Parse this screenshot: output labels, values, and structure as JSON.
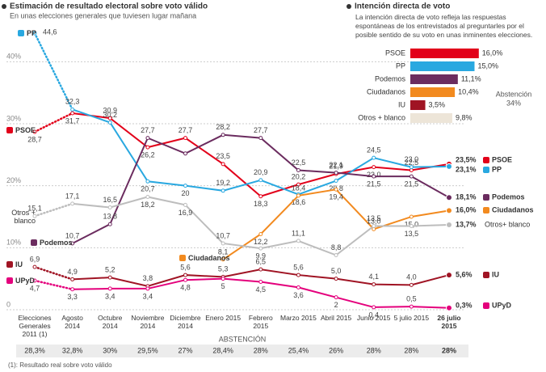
{
  "chart_data": [
    {
      "type": "line",
      "title": "Estimación de resultado electoral sobre voto válido",
      "subtitle": "En unas elecciones generales que tuviesen lugar mañana",
      "categories": [
        "Elecciones Generales 2011 (1)",
        "Agosto 2014",
        "Octubre 2014",
        "Noviembre 2014",
        "Diciembre 2014",
        "Enero 2015",
        "Febrero 2015",
        "Marzo 2015",
        "Abril 2015",
        "Junio 2015",
        "5 julio 2015",
        "26 julio 2015"
      ],
      "ylim": [
        0,
        45
      ],
      "yticks": [
        0,
        {
          "value": 10,
          "label": "10%"
        },
        {
          "value": 20,
          "label": "20%"
        },
        {
          "value": 30,
          "label": "30%"
        },
        {
          "value": 40,
          "label": "40%"
        }
      ],
      "grid": true,
      "series": [
        {
          "name": "PSOE",
          "color": "#e2001a",
          "values": [
            28.7,
            31.7,
            30.9,
            26.2,
            27.7,
            23.5,
            18.3,
            20.2,
            21.9,
            23.0,
            22.5,
            23.5
          ],
          "value_labels": [
            "28,7",
            "31,7",
            "30,9",
            "26,2",
            "27,7",
            "23,5",
            "18,3",
            "20,2",
            "21,9",
            "23,0",
            "22,5",
            "23,5%"
          ]
        },
        {
          "name": "PP",
          "color": "#29a8e0",
          "values": [
            44.6,
            32.3,
            30.2,
            20.7,
            20,
            19.2,
            20.9,
            18.6,
            20.8,
            24.5,
            23.0,
            23.1
          ],
          "value_labels": [
            "44,6",
            "32,3",
            "30,2",
            "20,7",
            "20",
            "19,2",
            "20,9",
            "18,6",
            "20,8",
            "24,5",
            "23,0",
            "23,1%"
          ]
        },
        {
          "name": "Podemos",
          "color": "#6b2c5f",
          "values": [
            null,
            10.7,
            13.8,
            27.7,
            25.2,
            28.2,
            27.7,
            22.5,
            22.1,
            21.5,
            21.5,
            18.1
          ],
          "value_labels": [
            null,
            "10,7",
            "13,8",
            "27,7",
            null,
            "28,2",
            "27,7",
            "22,5",
            "22,1",
            "21,5",
            "21,5",
            "18,1%"
          ]
        },
        {
          "name": "Ciudadanos",
          "color": "#f28a1f",
          "values": [
            null,
            null,
            null,
            null,
            null,
            8.1,
            12.2,
            18.4,
            19.4,
            13.0,
            15.0,
            16.0
          ],
          "value_labels": [
            null,
            null,
            null,
            null,
            null,
            "8,1",
            "12,2",
            "18,4",
            "19,4",
            "13,0",
            "15,0",
            "16,0%"
          ]
        },
        {
          "name": "Otros+ blanco",
          "start_name": "Otros + blanco",
          "color": "#bdbdbd",
          "values": [
            15.1,
            17.1,
            16.5,
            18.2,
            16.9,
            10.7,
            9.9,
            11.1,
            8.8,
            13.5,
            13.5,
            13.7
          ],
          "value_labels": [
            "15,1",
            "17,1",
            "16,5",
            "18,2",
            "16,9",
            "10,7",
            "9,9",
            "11,1",
            "8,8",
            "13,5",
            "13,5",
            "13,7%"
          ]
        },
        {
          "name": "IU",
          "color": "#a01424",
          "values": [
            6.9,
            4.9,
            5.2,
            3.8,
            5.6,
            5.3,
            6.5,
            5.6,
            5.0,
            4.1,
            4.0,
            5.6
          ],
          "value_labels": [
            "6,9",
            "4,9",
            "5,2",
            "3,8",
            "5,6",
            "5,3",
            "6,5",
            "5,6",
            "5,0",
            "4,1",
            "4,0",
            "5,6%"
          ]
        },
        {
          "name": "UPyD",
          "color": "#e4007c",
          "values": [
            4.7,
            3.3,
            3.4,
            3.4,
            4.8,
            5,
            4.5,
            3.6,
            2,
            0.4,
            0.5,
            0.3
          ],
          "value_labels": [
            "4,7",
            "3,3",
            "3,4",
            "3,4",
            "4,8",
            "5",
            "4,5",
            "3,6",
            "2",
            "0,4",
            "0,5",
            "0,3%"
          ]
        }
      ],
      "abstention": {
        "label": "ABSTENCIÓN",
        "values": [
          "28,3%",
          "32,8%",
          "30%",
          "29,5%",
          "27%",
          "28,4%",
          "28%",
          "25,4%",
          "26%",
          "28%",
          "28%",
          "28%"
        ]
      },
      "note": "(1): Resultado real sobre voto válido"
    },
    {
      "type": "bar",
      "title": "Intención directa de voto",
      "description": "La intención directa de voto refleja las respuestas espontáneas de los entrevistados al preguntarles por el posible sentido de su voto en unas inminentes elecciones.",
      "categories": [
        "PSOE",
        "PP",
        "Podemos",
        "Ciudadanos",
        "IU",
        "Otros + blanco"
      ],
      "values": [
        16.0,
        15.0,
        11.1,
        10.4,
        3.5,
        9.8
      ],
      "value_labels": [
        "16,0%",
        "15,0%",
        "11,1%",
        "10,4%",
        "3,5%",
        "9,8%"
      ],
      "colors": [
        "#e2001a",
        "#29a8e0",
        "#6b2c5f",
        "#f28a1f",
        "#a01424",
        "#ede5d8"
      ],
      "abstention": {
        "label": "Abstención",
        "value": "34%"
      }
    }
  ]
}
